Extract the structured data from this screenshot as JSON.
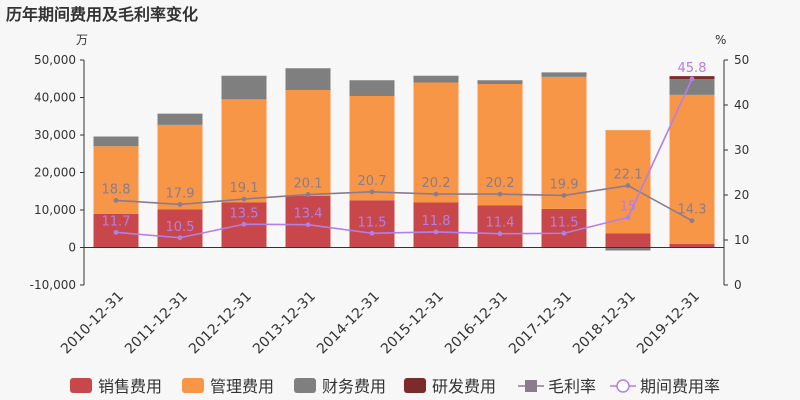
{
  "chart_data": {
    "type": "bar",
    "title": "历年期间费用及毛利率变化",
    "left_axis_unit": "万",
    "right_axis_unit": "%",
    "categories": [
      "2010-12-31",
      "2011-12-31",
      "2012-12-31",
      "2013-12-31",
      "2014-12-31",
      "2015-12-31",
      "2016-12-31",
      "2017-12-31",
      "2018-12-31",
      "2019-12-31"
    ],
    "left_axis": {
      "min": -10000,
      "max": 50000,
      "ticks": [
        -10000,
        0,
        10000,
        20000,
        30000,
        40000,
        50000
      ],
      "tick_labels": [
        "-10,000",
        "0",
        "10,000",
        "20,000",
        "30,000",
        "40,000",
        "50,000"
      ]
    },
    "right_axis": {
      "min": 0,
      "max": 50,
      "ticks": [
        0,
        10,
        20,
        30,
        40,
        50
      ],
      "tick_labels": [
        "0",
        "10",
        "20",
        "30",
        "40",
        "50"
      ]
    },
    "bar_series": [
      {
        "name": "销售费用",
        "color": "#c8474a",
        "values": [
          9000,
          10200,
          12000,
          13800,
          12600,
          12000,
          11200,
          10300,
          3800,
          1000
        ]
      },
      {
        "name": "管理费用",
        "color": "#f79646",
        "values": [
          18000,
          22500,
          27500,
          28200,
          27800,
          32000,
          32400,
          35200,
          27500,
          39700
        ]
      },
      {
        "name": "财务费用",
        "color": "#7f7f7f",
        "values": [
          2600,
          3000,
          6300,
          5800,
          4200,
          1800,
          1000,
          1200,
          -800,
          4200
        ]
      },
      {
        "name": "研发费用",
        "color": "#7b2b2b",
        "values": [
          0,
          0,
          0,
          0,
          0,
          0,
          0,
          0,
          0,
          800
        ]
      }
    ],
    "line_series": [
      {
        "name": "毛利率",
        "color": "#8c7b8f",
        "values": [
          18.8,
          17.9,
          19.1,
          20.1,
          20.7,
          20.2,
          20.2,
          19.9,
          22.1,
          14.3
        ],
        "labels": [
          "18.8",
          "17.9",
          "19.1",
          "20.1",
          "20.7",
          "20.2",
          "20.2",
          "19.9",
          "22.1",
          "14.3"
        ]
      },
      {
        "name": "期间费用率",
        "color": "#b47ee8",
        "values": [
          11.7,
          10.5,
          13.5,
          13.4,
          11.5,
          11.8,
          11.4,
          11.5,
          15,
          45.8
        ],
        "labels": [
          "11.7",
          "10.5",
          "13.5",
          "13.4",
          "11.5",
          "11.8",
          "11.4",
          "11.5",
          "15",
          "45.8"
        ]
      }
    ],
    "legend_position": "bottom",
    "grid": false
  }
}
